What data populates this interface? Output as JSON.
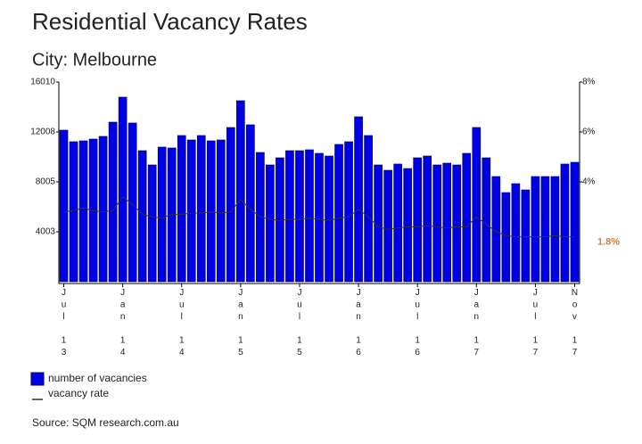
{
  "chart_data": {
    "type": "bar",
    "title": "Residential Vacancy Rates",
    "subtitle": "City: Melbourne",
    "source": "Source: SQM research.com.au",
    "categories": [
      "Jul 13",
      null,
      null,
      null,
      null,
      null,
      "Jan 14",
      null,
      null,
      null,
      null,
      null,
      "Jul 14",
      null,
      null,
      null,
      null,
      null,
      "Jan 15",
      null,
      null,
      null,
      null,
      null,
      "Jul 15",
      null,
      null,
      null,
      null,
      null,
      "Jan 16",
      null,
      null,
      null,
      null,
      null,
      "Jul 16",
      null,
      null,
      null,
      null,
      null,
      "Jan 17",
      null,
      null,
      null,
      null,
      null,
      "Jul 17",
      null,
      null,
      null,
      "Nov 17"
    ],
    "series": [
      {
        "name": "number of vacancies",
        "color": "#0000e6",
        "values": [
          12152,
          11223,
          11294,
          11437,
          11652,
          12795,
          14797,
          12724,
          10508,
          9364,
          10794,
          10722,
          11723,
          11366,
          11723,
          11294,
          11366,
          12366,
          14511,
          12581,
          10365,
          9364,
          9936,
          10508,
          10508,
          10579,
          10293,
          10079,
          11008,
          11223,
          13224,
          11723,
          9364,
          8935,
          9436,
          9078,
          9936,
          10079,
          9364,
          9507,
          9364,
          10293,
          12366,
          9936,
          8435,
          7148,
          7863,
          7363,
          8435,
          8435,
          8435,
          9436,
          9578
        ]
      },
      {
        "name": "vacancy rate",
        "color": "#333333",
        "axis": "y2",
        "values": [
          2.8,
          2.85,
          2.95,
          2.85,
          2.8,
          2.85,
          3.4,
          3.1,
          2.7,
          2.6,
          2.55,
          2.7,
          2.7,
          2.75,
          2.75,
          2.8,
          2.75,
          2.8,
          3.3,
          2.9,
          2.6,
          2.5,
          2.45,
          2.5,
          2.5,
          2.55,
          2.5,
          2.45,
          2.55,
          2.6,
          2.9,
          2.6,
          2.2,
          2.1,
          2.15,
          2.2,
          2.2,
          2.25,
          2.2,
          2.15,
          2.2,
          2.2,
          2.6,
          2.3,
          2.0,
          1.85,
          1.8,
          1.8,
          1.8,
          1.8,
          1.85,
          1.8,
          1.8
        ],
        "value_labels": [
          null,
          null,
          null,
          null,
          null,
          null,
          null,
          null,
          null,
          null,
          null,
          null,
          null,
          null,
          null,
          null,
          null,
          null,
          null,
          null,
          null,
          null,
          null,
          null,
          null,
          null,
          null,
          null,
          null,
          null,
          null,
          null,
          null,
          null,
          null,
          null,
          null,
          null,
          null,
          null,
          null,
          null,
          null,
          null,
          null,
          null,
          null,
          null,
          null,
          null,
          null,
          null,
          "1.8%"
        ],
        "label_color": "#d9793a"
      }
    ],
    "ylim": [
      0,
      16010
    ],
    "yticks": [
      4003,
      8005,
      12008,
      16010
    ],
    "y2lim": [
      0,
      8
    ],
    "y2ticks": [
      {
        "value": 4,
        "label": "4%"
      },
      {
        "value": 6,
        "label": "6%"
      },
      {
        "value": 8,
        "label": "8%"
      }
    ]
  }
}
